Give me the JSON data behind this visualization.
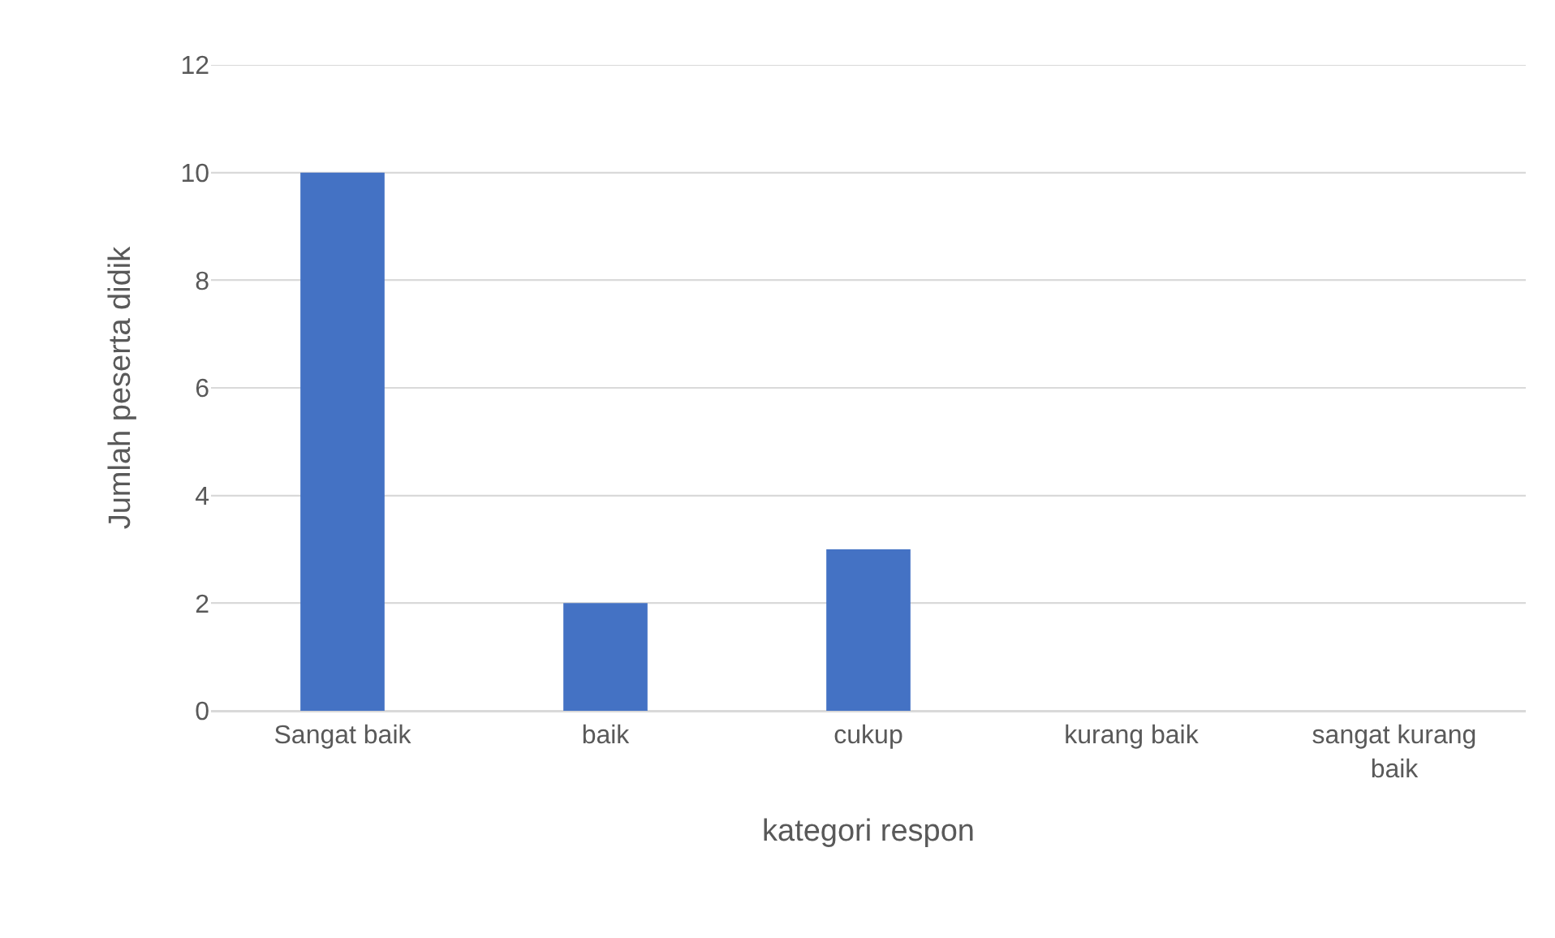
{
  "chart_data": {
    "type": "bar",
    "xlabel": "kategori respon",
    "ylabel": "Jumlah peserta didik",
    "categories": [
      "Sangat baik",
      "baik",
      "cukup",
      "kurang baik",
      "sangat kurang baik"
    ],
    "values": [
      10,
      2,
      3,
      0,
      0
    ],
    "color": "#4472c4",
    "ylim": [
      0,
      12
    ],
    "yticks": [
      0,
      2,
      4,
      6,
      8,
      10,
      12
    ],
    "grid": "y"
  }
}
